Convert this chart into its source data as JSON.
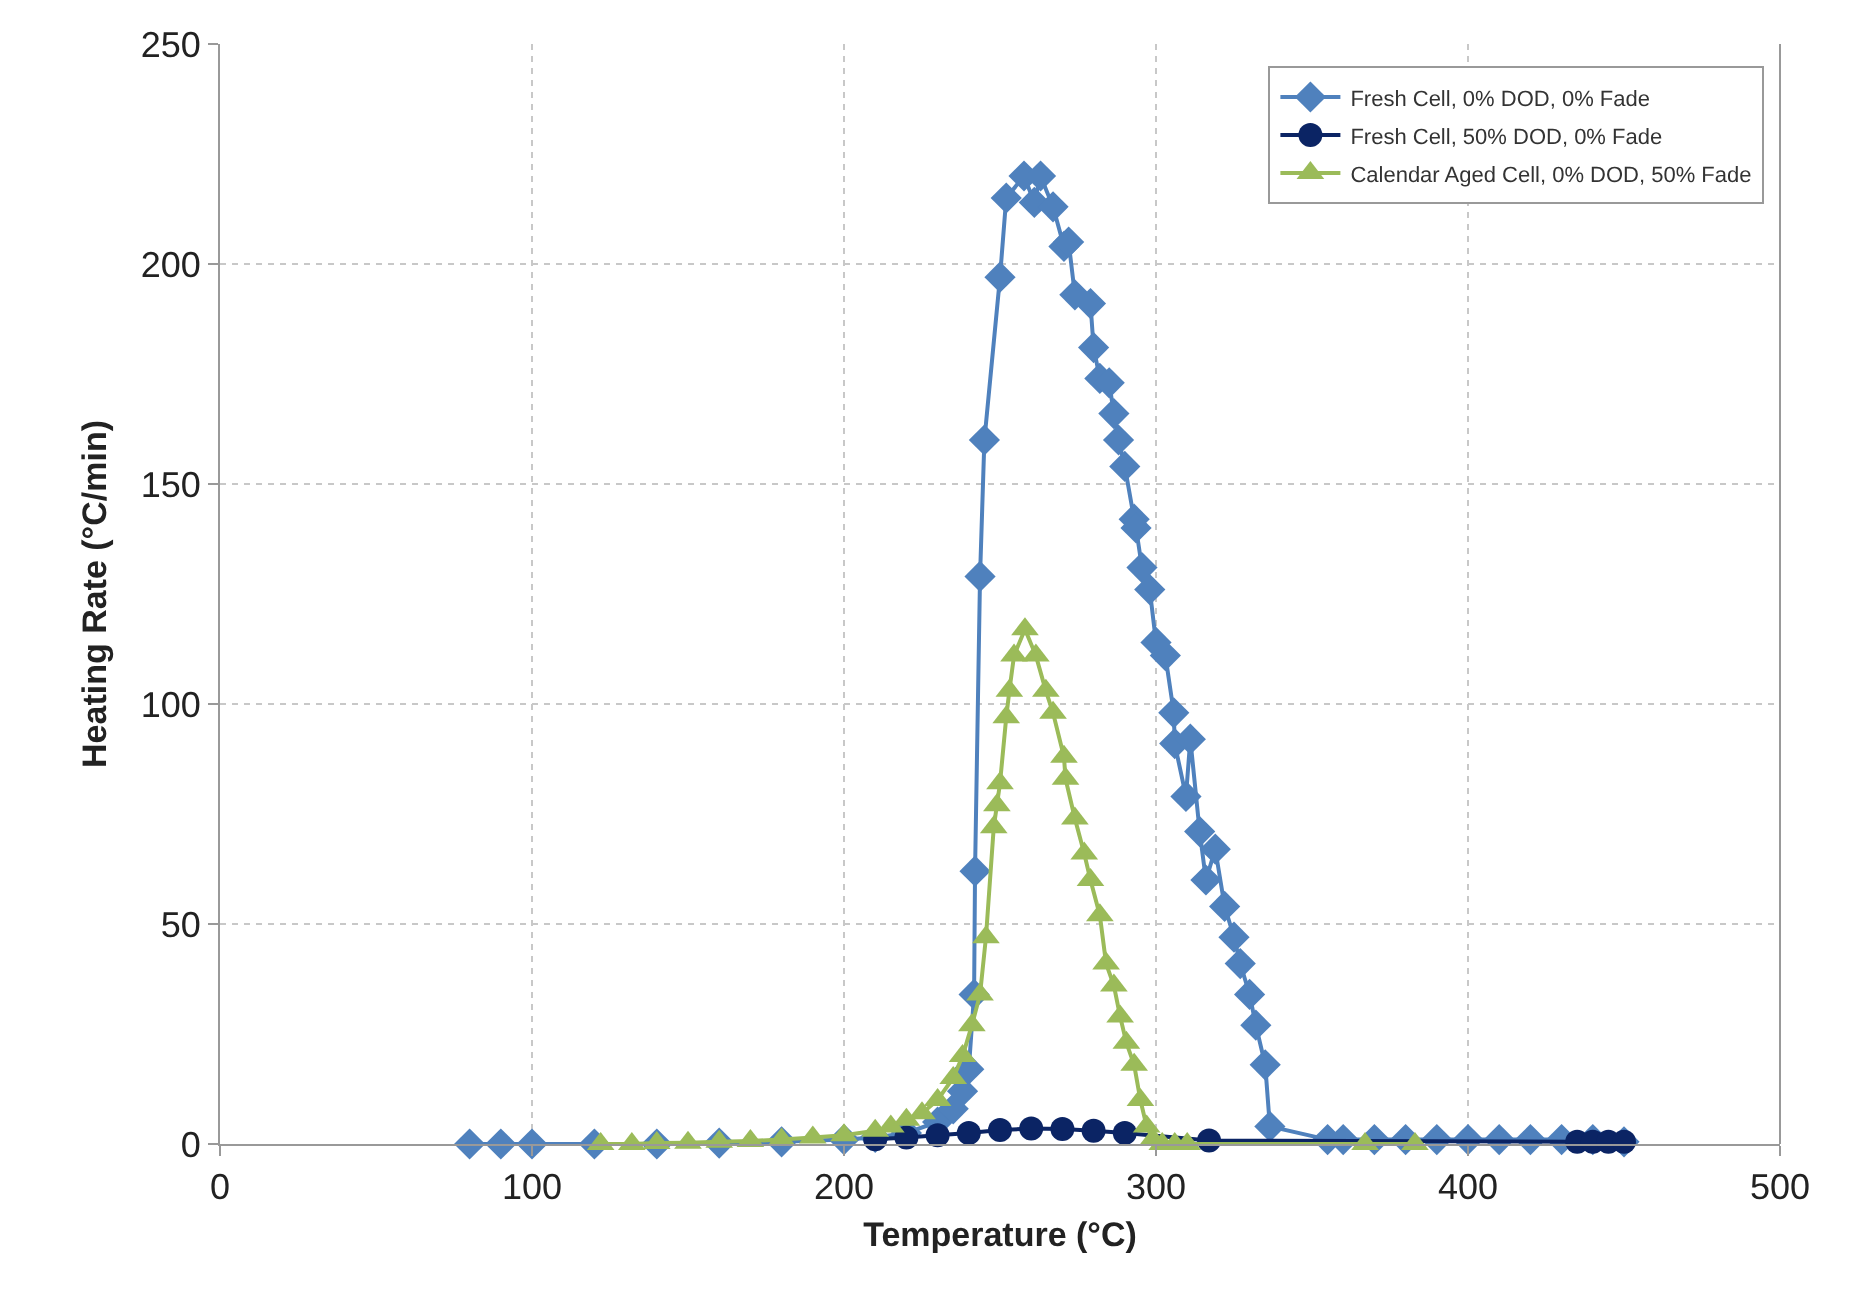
{
  "chart_data": {
    "type": "line",
    "xlabel": "Temperature (°C)",
    "ylabel": "Heating Rate (°C/min)",
    "xlim": [
      0,
      500
    ],
    "xticks": [
      0,
      100,
      200,
      300,
      400,
      500
    ],
    "ylim": [
      0,
      250
    ],
    "yticks": [
      0,
      50,
      100,
      150,
      200,
      250
    ],
    "grid": true,
    "legend": "top right",
    "line_style": "solid",
    "series": [
      {
        "name": "Fresh Cell, 0% DOD, 0% Fade",
        "color": "#4f81bd",
        "marker": "diamond",
        "x": [
          80,
          90,
          100,
          120,
          140,
          160,
          180,
          200,
          210,
          220,
          230,
          235,
          238,
          240,
          241.7,
          242,
          243.6,
          245,
          250,
          252,
          257.7,
          261,
          263,
          267,
          270.5,
          272,
          274,
          279,
          280,
          282,
          285,
          286.5,
          288,
          290,
          293,
          293.6,
          295.5,
          298,
          300,
          303,
          305.7,
          306,
          309.6,
          311,
          314,
          316,
          319,
          322,
          325,
          327,
          330,
          332,
          335,
          336.5,
          355,
          360,
          370,
          380,
          390,
          400,
          410,
          420,
          430,
          440,
          450
        ],
        "values": [
          0,
          0,
          0,
          0,
          0,
          0.2,
          0.5,
          1,
          1.5,
          2.5,
          5,
          8,
          12,
          17,
          34,
          62,
          129,
          160,
          197,
          215,
          220,
          214,
          220,
          213,
          204,
          205,
          193,
          191,
          181,
          174,
          173,
          166,
          160,
          154,
          142,
          140,
          131,
          126,
          114,
          111,
          98,
          91,
          79,
          92,
          71,
          60,
          67,
          54,
          47,
          41,
          34,
          27,
          18,
          4,
          1,
          1,
          1,
          1,
          1,
          1,
          1,
          1,
          1,
          1,
          0.5
        ]
      },
      {
        "name": "Fresh Cell, 50% DOD, 0% Fade",
        "color": "#0b2464",
        "marker": "circle",
        "x": [
          210,
          220,
          230,
          240,
          250,
          260,
          270,
          280,
          290,
          317,
          435,
          440,
          445,
          450
        ],
        "values": [
          1.1,
          1.5,
          2,
          2.5,
          3.2,
          3.5,
          3.4,
          3,
          2.5,
          0.8,
          0.5,
          0.5,
          0.5,
          0.5
        ]
      },
      {
        "name": "Calendar Aged Cell, 0% DOD, 50% Fade",
        "color": "#9bbb59",
        "marker": "triangle",
        "x": [
          122,
          132,
          140,
          150,
          160,
          170,
          180,
          190,
          200,
          210,
          215,
          220,
          225,
          230,
          235,
          238,
          241,
          243.6,
          245.5,
          248,
          249,
          250,
          252,
          253,
          254.5,
          258,
          261.5,
          264.7,
          267,
          270.5,
          271,
          274,
          277,
          279,
          282,
          284,
          286.5,
          288.5,
          290.5,
          293,
          295,
          297,
          299,
          302,
          306,
          310,
          367,
          383
        ],
        "values": [
          0,
          0,
          0.2,
          0.3,
          0.5,
          0.7,
          1,
          1.5,
          2,
          3,
          4,
          5.5,
          7,
          10,
          15,
          20,
          27,
          34,
          47,
          72,
          77,
          82,
          97,
          103,
          111,
          117,
          111,
          103,
          98,
          88,
          83,
          74,
          66,
          60,
          52,
          41,
          36,
          29,
          23,
          18,
          10,
          4,
          1,
          0,
          0,
          0,
          0,
          0
        ]
      }
    ]
  }
}
